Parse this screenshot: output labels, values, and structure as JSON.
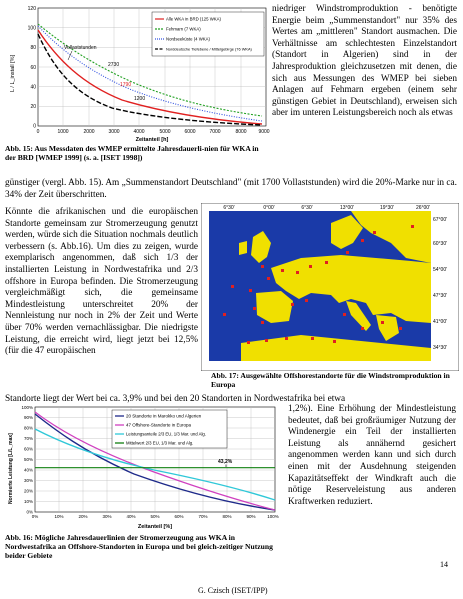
{
  "fig15": {
    "caption": "Abb. 15: Aus Messdaten des WMEP ermittelte Jahresdauerli-nien für WKA in der BRD [WMEP 1999] (s. a. [ISET 1998])",
    "ylabel": "L / L_install [%]",
    "xlabel": "Zeitanteil [h]",
    "legend": [
      "Alle WKA in BRD (125 WKA)",
      "Fehmarn (7 WKA)",
      "Nordseeküste (4 WKA)",
      "Norddeutsche Tiefebene / Mittelgebirge (76 WKA)"
    ],
    "annotation": "Vollaststunden",
    "value_labels": [
      "2730",
      "1790",
      "1200"
    ]
  },
  "fig17": {
    "caption": "Abb. 17: Ausgewählte Offshorestandorte für die Windstromproduktion in Europa",
    "lon_labels": [
      "6°30'",
      "0°00'",
      "6°30'",
      "13°00'",
      "19°30'",
      "26°00'"
    ],
    "lat_labels": [
      "67°00'",
      "60°30'",
      "54°00'",
      "47°30'",
      "41°00'",
      "34°30'"
    ]
  },
  "fig16": {
    "caption": "Abb. 16: Mögliche Jahresdauerlinien der Stromerzeugung aus WKA in Nordwestafrika an Offshore-Standorten in Europa und bei gleich-zeitiger Nutzung beider Gebiete",
    "ylabel": "Normierte Leistung [L/L_max]",
    "xlabel": "Zeitanteil [%]",
    "legend": [
      "20 Standorte in Marokko und Algerien",
      "47 Offshore-Standorte in Europa",
      "Leistungsanteile 2/3 EU, 1/3 Mar. und Alg.",
      "Mittelwert 2/3 EU, 1/3 Mar. und Alg."
    ],
    "label_value": "43,2%"
  },
  "text": {
    "right_col": "niedriger Windstromproduktion - benötigte Energie beim „Summenstandort\" nur 35% des Wertes am „mittleren\" Standort ausmachen. Die Verhältnisse am schlechtesten Einzelstandort (Standort in Algerien) sind in der Jahresproduktion gleichzusetzen mit denen, die sich aus Messungen des WMEP bei sieben Anlagen auf Fehmarn ergeben (einem sehr günstigen Gebiet in Deutschland), erweisen sich aber im unteren Leistungsbereich noch als etwas",
    "full1": "günstiger (vergl. Abb. 15). Am „Summenstandort Deutschland\" (mit 1700 Vollaststunden) wird die 20%-Marke nur in ca. 34% der Zeit überschritten.",
    "left_col": "Könnte die afrikanischen und die europäischen Standorte gemeinsam zur Stromerzeugung genutzt werden, würde sich die Situation nochmals deutlich verbessern (s. Abb.16). Um dies zu zeigen, wurde exemplarisch angenommen, daß sich 1/3 der installierten Leistung in Nordwestafrika und 2/3 offshore in Europa befinden. Die Stromerzeugung vergleichmäßigt sich, die gemeinsame Mindestleistung unterschreitet 20% der Nennleistung nur noch in 2% der Zeit und Werte über 70% werden vernachlässigbar. Die niedrigste Leistung, die erreicht wird, liegt jetzt bei 12,5% (für die 47 europäischen",
    "full2": "Standorte liegt der Wert bei ca. 3,9% und bei den 20 Standorten in Nordwestafrika bei etwa",
    "right2": "1,2%). Eine Erhöhung der Mindestleistung bedeutet, daß bei großräumiger Nutzung der Windenergie ein Teil der installierten Leistung als annähernd gesichert angenommen werden kann und sich durch einen mit der Ausdehnung steigenden Kapazitätseffekt der Windkraft auch die nötige Reserveleistung aus anderen Kraftwerken reduziert.",
    "page_number": "14",
    "author": "G. Czisch (ISET/IPP)"
  }
}
